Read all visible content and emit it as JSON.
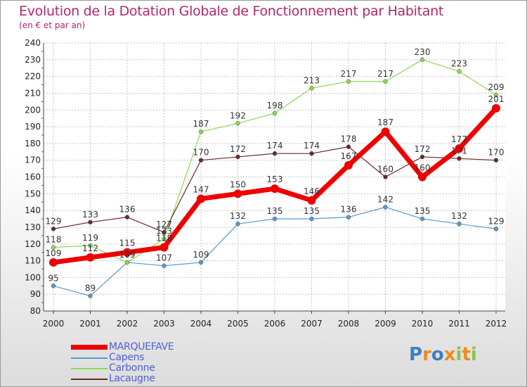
{
  "header": {
    "title": "Evolution de la Dotation Globale de Fonctionnement par Habitant",
    "subtitle": "(en € et par an)"
  },
  "logo": {
    "text": "Proxiti"
  },
  "colors": {
    "title": "#b1266f",
    "legend_text": "#4f60d8",
    "grid": "#c4c4c4",
    "axis": "#444444",
    "tick_text": "#222222",
    "value_text": "#333333"
  },
  "chart_data": {
    "type": "line",
    "title": "Evolution de la Dotation Globale de Fonctionnement par Habitant",
    "subtitle": "(en € et par an)",
    "xlabel": "",
    "ylabel": "",
    "x": [
      "2000",
      "2001",
      "2002",
      "2003",
      "2004",
      "2005",
      "2006",
      "2007",
      "2008",
      "2009",
      "2010",
      "2011",
      "2012"
    ],
    "ylim": [
      80,
      240
    ],
    "yticks": [
      80,
      90,
      100,
      110,
      120,
      130,
      140,
      150,
      160,
      170,
      180,
      190,
      200,
      210,
      220,
      230,
      240
    ],
    "grid": true,
    "legend_position": "bottom-left",
    "series": [
      {
        "name": "MARQUEFAVE",
        "color": "#ee0000",
        "values": [
          109,
          112,
          115,
          118,
          147,
          150,
          153,
          146,
          167,
          187,
          160,
          177,
          201
        ]
      },
      {
        "name": "Capens",
        "color": "#5b98c9",
        "values": [
          95,
          89,
          109,
          107,
          109,
          132,
          135,
          135,
          136,
          142,
          135,
          132,
          129
        ]
      },
      {
        "name": "Carbonne",
        "color": "#8cd656",
        "values": [
          118,
          119,
          109,
          123,
          187,
          192,
          198,
          213,
          217,
          217,
          230,
          223,
          209
        ]
      },
      {
        "name": "Lacaugne",
        "color": "#6b2a2a",
        "values": [
          129,
          133,
          136,
          127,
          170,
          172,
          174,
          174,
          178,
          160,
          172,
          171,
          170
        ]
      }
    ]
  }
}
